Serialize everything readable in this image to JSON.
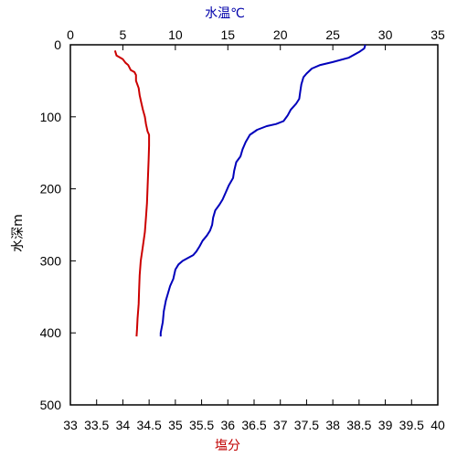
{
  "chart_data": {
    "type": "line",
    "title": "",
    "axes": {
      "y": {
        "label": "水深m",
        "range": [
          0,
          500
        ],
        "ticks": [
          0,
          100,
          200,
          300,
          400,
          500
        ],
        "inverted": true
      },
      "x_top": {
        "label": "水温℃",
        "range": [
          0,
          35
        ],
        "ticks": [
          0,
          5,
          10,
          15,
          20,
          25,
          30,
          35
        ],
        "color": "#0000aa"
      },
      "x_bottom": {
        "label": "塩分",
        "range": [
          33,
          40
        ],
        "ticks": [
          "33",
          "33.5",
          "34",
          "34.5",
          "35",
          "35.5",
          "36",
          "36.5",
          "37",
          "37.5",
          "38",
          "38.5",
          "39",
          "39.5",
          "40"
        ],
        "color": "#c00000"
      }
    },
    "grid": false,
    "series": [
      {
        "axis": "x_top",
        "color": "#0000bb",
        "points": [
          [
            28.1,
            0
          ],
          [
            28.0,
            5
          ],
          [
            27.5,
            10
          ],
          [
            26.5,
            18
          ],
          [
            25.0,
            24
          ],
          [
            23.8,
            28
          ],
          [
            23.0,
            33
          ],
          [
            22.5,
            40
          ],
          [
            22.2,
            45
          ],
          [
            22.0,
            55
          ],
          [
            21.9,
            65
          ],
          [
            21.8,
            75
          ],
          [
            21.5,
            82
          ],
          [
            21.0,
            90
          ],
          [
            20.7,
            98
          ],
          [
            20.3,
            106
          ],
          [
            19.6,
            110
          ],
          [
            18.7,
            113
          ],
          [
            17.8,
            118
          ],
          [
            17.1,
            125
          ],
          [
            16.7,
            135
          ],
          [
            16.4,
            145
          ],
          [
            16.2,
            155
          ],
          [
            15.8,
            163
          ],
          [
            15.6,
            175
          ],
          [
            15.5,
            185
          ],
          [
            15.1,
            195
          ],
          [
            14.8,
            205
          ],
          [
            14.5,
            215
          ],
          [
            14.2,
            222
          ],
          [
            13.8,
            230
          ],
          [
            13.6,
            240
          ],
          [
            13.5,
            250
          ],
          [
            13.3,
            258
          ],
          [
            13.0,
            265
          ],
          [
            12.6,
            272
          ],
          [
            12.3,
            280
          ],
          [
            12.0,
            287
          ],
          [
            11.7,
            292
          ],
          [
            11.2,
            296
          ],
          [
            10.7,
            300
          ],
          [
            10.3,
            305
          ],
          [
            10.0,
            312
          ],
          [
            9.8,
            325
          ],
          [
            9.5,
            335
          ],
          [
            9.3,
            345
          ],
          [
            9.1,
            355
          ],
          [
            8.9,
            370
          ],
          [
            8.8,
            385
          ],
          [
            8.6,
            400
          ],
          [
            8.6,
            405
          ]
        ]
      },
      {
        "axis": "x_bottom",
        "color": "#cc0000",
        "points": [
          [
            33.85,
            8
          ],
          [
            33.88,
            15
          ],
          [
            34.0,
            20
          ],
          [
            34.05,
            25
          ],
          [
            34.1,
            28
          ],
          [
            34.15,
            35
          ],
          [
            34.22,
            38
          ],
          [
            34.25,
            42
          ],
          [
            34.25,
            50
          ],
          [
            34.3,
            60
          ],
          [
            34.32,
            70
          ],
          [
            34.35,
            80
          ],
          [
            34.38,
            90
          ],
          [
            34.42,
            100
          ],
          [
            34.44,
            110
          ],
          [
            34.47,
            120
          ],
          [
            34.5,
            125
          ],
          [
            34.5,
            140
          ],
          [
            34.49,
            160
          ],
          [
            34.48,
            180
          ],
          [
            34.47,
            200
          ],
          [
            34.46,
            220
          ],
          [
            34.44,
            240
          ],
          [
            34.42,
            260
          ],
          [
            34.38,
            280
          ],
          [
            34.34,
            300
          ],
          [
            34.32,
            320
          ],
          [
            34.31,
            340
          ],
          [
            34.3,
            360
          ],
          [
            34.28,
            380
          ],
          [
            34.27,
            395
          ],
          [
            34.26,
            405
          ]
        ]
      }
    ]
  }
}
